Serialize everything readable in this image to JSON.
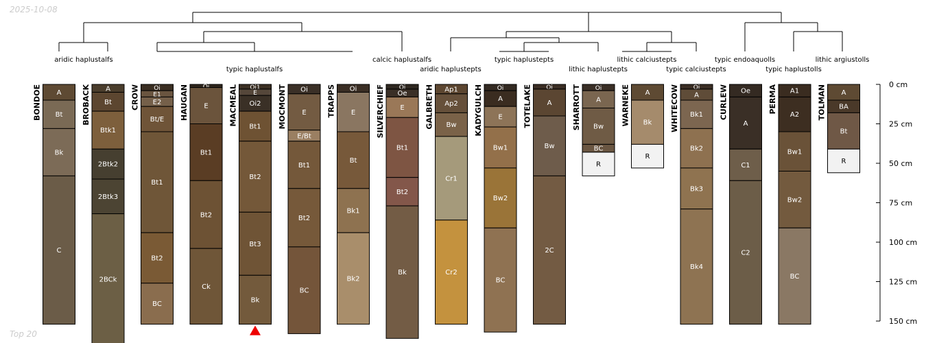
{
  "header": {
    "date": "2025-10-08"
  },
  "footer": {
    "label": "Top 20"
  },
  "depth_axis": {
    "ticks": [
      {
        "depth": 0,
        "label": "0 cm"
      },
      {
        "depth": 25,
        "label": "25 cm"
      },
      {
        "depth": 50,
        "label": "50 cm"
      },
      {
        "depth": 75,
        "label": "75 cm"
      },
      {
        "depth": 100,
        "label": "100 cm"
      },
      {
        "depth": 125,
        "label": "125 cm"
      },
      {
        "depth": 150,
        "label": "150 cm"
      }
    ]
  },
  "groups": [
    {
      "label": "aridic haplustalfs"
    },
    {
      "label": "typic haplustalfs"
    },
    {
      "label": "calcic haplustalfs"
    },
    {
      "label": "aridic haplustepts"
    },
    {
      "label": "typic haplustepts"
    },
    {
      "label": "lithic haplustepts"
    },
    {
      "label": "lithic calciustepts"
    },
    {
      "label": "typic calciustepts"
    },
    {
      "label": "typic endoaquolls"
    },
    {
      "label": "typic haplustolls"
    },
    {
      "label": "lithic argiustolls"
    }
  ],
  "profiles": [
    {
      "name": "BONDOE",
      "horizons": [
        {
          "name": "A",
          "top": 0,
          "bottom": 10,
          "color": "#5e4a33"
        },
        {
          "name": "Bt",
          "top": 10,
          "bottom": 28,
          "color": "#7a6a55"
        },
        {
          "name": "Bk",
          "top": 28,
          "bottom": 58,
          "color": "#7c6b57"
        },
        {
          "name": "C",
          "top": 58,
          "bottom": 152,
          "color": "#6b5c48"
        }
      ]
    },
    {
      "name": "BROBACK",
      "horizons": [
        {
          "name": "A",
          "top": 0,
          "bottom": 5,
          "color": "#4a3d2c"
        },
        {
          "name": "Bt",
          "top": 5,
          "bottom": 17,
          "color": "#5c4630"
        },
        {
          "name": "Btk1",
          "top": 17,
          "bottom": 41,
          "color": "#7d5f3c"
        },
        {
          "name": "2Btk2",
          "top": 41,
          "bottom": 60,
          "color": "#463f30"
        },
        {
          "name": "2Btk3",
          "top": 60,
          "bottom": 82,
          "color": "#4c4433"
        },
        {
          "name": "2BCk",
          "top": 82,
          "bottom": 165,
          "color": "#6c5f45"
        }
      ]
    },
    {
      "name": "CROW",
      "horizons": [
        {
          "name": "Oi",
          "top": 0,
          "bottom": 4,
          "color": "#3a2e22"
        },
        {
          "name": "E1",
          "top": 4,
          "bottom": 8,
          "color": "#6a5540"
        },
        {
          "name": "E2",
          "top": 8,
          "bottom": 14,
          "color": "#75604a"
        },
        {
          "name": "Bt/E",
          "top": 14,
          "bottom": 30,
          "color": "#6f5438"
        },
        {
          "name": "Bt1",
          "top": 30,
          "bottom": 94,
          "color": "#6f5638"
        },
        {
          "name": "Bt2",
          "top": 94,
          "bottom": 126,
          "color": "#7a5a35"
        },
        {
          "name": "BC",
          "top": 126,
          "bottom": 152,
          "color": "#8a6d4e"
        }
      ]
    },
    {
      "name": "HAUGAN",
      "horizons": [
        {
          "name": "Oi",
          "top": 0,
          "bottom": 2,
          "color": "#2f261c"
        },
        {
          "name": "E",
          "top": 2,
          "bottom": 25,
          "color": "#6b543c"
        },
        {
          "name": "Bt1",
          "top": 25,
          "bottom": 61,
          "color": "#5a3d24"
        },
        {
          "name": "Bt2",
          "top": 61,
          "bottom": 104,
          "color": "#6d5234"
        },
        {
          "name": "Ck",
          "top": 104,
          "bottom": 152,
          "color": "#6f5638"
        }
      ]
    },
    {
      "name": "MACMEAL",
      "horizons": [
        {
          "name": "Oi1",
          "top": 0,
          "bottom": 3,
          "color": "#3b2f23"
        },
        {
          "name": "E",
          "top": 3,
          "bottom": 7,
          "color": "#55473a"
        },
        {
          "name": "Oi2",
          "top": 7,
          "bottom": 17,
          "color": "#3a3026"
        },
        {
          "name": "Bt1",
          "top": 17,
          "bottom": 36,
          "color": "#6e5233"
        },
        {
          "name": "Bt2",
          "top": 36,
          "bottom": 81,
          "color": "#745839"
        },
        {
          "name": "Bt3",
          "top": 81,
          "bottom": 121,
          "color": "#6f5436"
        },
        {
          "name": "Bk",
          "top": 121,
          "bottom": 152,
          "color": "#735a3c"
        }
      ]
    },
    {
      "name": "MOCMONT",
      "horizons": [
        {
          "name": "Oi",
          "top": 0,
          "bottom": 6,
          "color": "#3b3027"
        },
        {
          "name": "E",
          "top": 6,
          "bottom": 29,
          "color": "#735b42"
        },
        {
          "name": "E/Bt",
          "top": 29,
          "bottom": 36,
          "color": "#9a7f62"
        },
        {
          "name": "Bt1",
          "top": 36,
          "bottom": 66,
          "color": "#74583a"
        },
        {
          "name": "Bt2",
          "top": 66,
          "bottom": 103,
          "color": "#76593a"
        },
        {
          "name": "BC",
          "top": 103,
          "bottom": 158,
          "color": "#74553a"
        }
      ]
    },
    {
      "name": "TRAPPS",
      "horizons": [
        {
          "name": "Oi",
          "top": 0,
          "bottom": 5,
          "color": "#3a2e24"
        },
        {
          "name": "E",
          "top": 5,
          "bottom": 30,
          "color": "#8a7661"
        },
        {
          "name": "Bt",
          "top": 30,
          "bottom": 66,
          "color": "#77593a"
        },
        {
          "name": "Bk1",
          "top": 66,
          "bottom": 94,
          "color": "#8e7250"
        },
        {
          "name": "Bk2",
          "top": 94,
          "bottom": 152,
          "color": "#a98e6b"
        }
      ]
    },
    {
      "name": "SILVERCHIEF",
      "horizons": [
        {
          "name": "Oi",
          "top": 0,
          "bottom": 3,
          "color": "#2e2720"
        },
        {
          "name": "Oe",
          "top": 3,
          "bottom": 8,
          "color": "#3a2f26"
        },
        {
          "name": "E",
          "top": 8,
          "bottom": 21,
          "color": "#9a7858"
        },
        {
          "name": "Bt1",
          "top": 21,
          "bottom": 59,
          "color": "#7e5543"
        },
        {
          "name": "Bt2",
          "top": 59,
          "bottom": 77,
          "color": "#83574a"
        },
        {
          "name": "Bk",
          "top": 77,
          "bottom": 161,
          "color": "#735c45"
        }
      ]
    },
    {
      "name": "GALBRETH",
      "horizons": [
        {
          "name": "Ap1",
          "top": 0,
          "bottom": 6,
          "color": "#5c4630"
        },
        {
          "name": "Ap2",
          "top": 6,
          "bottom": 18,
          "color": "#66503a"
        },
        {
          "name": "Bw",
          "top": 18,
          "bottom": 33,
          "color": "#7a6248"
        },
        {
          "name": "Cr1",
          "top": 33,
          "bottom": 86,
          "color": "#a59a7b"
        },
        {
          "name": "Cr2",
          "top": 86,
          "bottom": 152,
          "color": "#c4923e"
        }
      ]
    },
    {
      "name": "KADYGULCH",
      "horizons": [
        {
          "name": "Oi",
          "top": 0,
          "bottom": 4,
          "color": "#332a22"
        },
        {
          "name": "A",
          "top": 4,
          "bottom": 14,
          "color": "#3a2c20"
        },
        {
          "name": "E",
          "top": 14,
          "bottom": 27,
          "color": "#8d7458"
        },
        {
          "name": "Bw1",
          "top": 27,
          "bottom": 53,
          "color": "#93704a"
        },
        {
          "name": "Bw2",
          "top": 53,
          "bottom": 91,
          "color": "#9a7438"
        },
        {
          "name": "BC",
          "top": 91,
          "bottom": 157,
          "color": "#8f7252"
        }
      ]
    },
    {
      "name": "TOTELAKE",
      "horizons": [
        {
          "name": "Oi",
          "top": 0,
          "bottom": 3,
          "color": "#3b2e24"
        },
        {
          "name": "A",
          "top": 3,
          "bottom": 20,
          "color": "#5b4632"
        },
        {
          "name": "Bw",
          "top": 20,
          "bottom": 58,
          "color": "#6e5c4b"
        },
        {
          "name": "2C",
          "top": 58,
          "bottom": 152,
          "color": "#735b43"
        }
      ]
    },
    {
      "name": "SHARROTT",
      "horizons": [
        {
          "name": "Oi",
          "top": 0,
          "bottom": 4,
          "color": "#3a2f26"
        },
        {
          "name": "A",
          "top": 4,
          "bottom": 15,
          "color": "#7a6650"
        },
        {
          "name": "Bw",
          "top": 15,
          "bottom": 38,
          "color": "#6f5b45"
        },
        {
          "name": "BC",
          "top": 38,
          "bottom": 43,
          "color": "#6a5642"
        },
        {
          "name": "R",
          "top": 43,
          "bottom": 58,
          "color": "#f2f2f2"
        }
      ]
    },
    {
      "name": "WARNEKE",
      "horizons": [
        {
          "name": "A",
          "top": 0,
          "bottom": 10,
          "color": "#5e4a33"
        },
        {
          "name": "Bk",
          "top": 10,
          "bottom": 38,
          "color": "#a58b6c"
        },
        {
          "name": "R",
          "top": 38,
          "bottom": 53,
          "color": "#f2f2f2"
        }
      ]
    },
    {
      "name": "WHITECOW",
      "horizons": [
        {
          "name": "Oi",
          "top": 0,
          "bottom": 3,
          "color": "#3a2e24"
        },
        {
          "name": "A",
          "top": 3,
          "bottom": 10,
          "color": "#5f4c38"
        },
        {
          "name": "Bk1",
          "top": 10,
          "bottom": 28,
          "color": "#7c6650"
        },
        {
          "name": "Bk2",
          "top": 28,
          "bottom": 53,
          "color": "#8e7150"
        },
        {
          "name": "Bk3",
          "top": 53,
          "bottom": 79,
          "color": "#8f7350"
        },
        {
          "name": "Bk4",
          "top": 79,
          "bottom": 152,
          "color": "#8e7352"
        }
      ]
    },
    {
      "name": "CURLEW",
      "horizons": [
        {
          "name": "Oe",
          "top": 0,
          "bottom": 8,
          "color": "#342a22"
        },
        {
          "name": "A",
          "top": 8,
          "bottom": 41,
          "color": "#3a2f26"
        },
        {
          "name": "C1",
          "top": 41,
          "bottom": 61,
          "color": "#6e5e4a"
        },
        {
          "name": "C2",
          "top": 61,
          "bottom": 152,
          "color": "#6c5d48"
        }
      ]
    },
    {
      "name": "PERMA",
      "horizons": [
        {
          "name": "A1",
          "top": 0,
          "bottom": 8,
          "color": "#3a2c20"
        },
        {
          "name": "A2",
          "top": 8,
          "bottom": 30,
          "color": "#3d2e21"
        },
        {
          "name": "Bw1",
          "top": 30,
          "bottom": 55,
          "color": "#6a5238"
        },
        {
          "name": "Bw2",
          "top": 55,
          "bottom": 91,
          "color": "#735a3e"
        },
        {
          "name": "BC",
          "top": 91,
          "bottom": 152,
          "color": "#8a7864"
        }
      ]
    },
    {
      "name": "TOLMAN",
      "horizons": [
        {
          "name": "A",
          "top": 0,
          "bottom": 10,
          "color": "#5e4a33"
        },
        {
          "name": "BA",
          "top": 10,
          "bottom": 18,
          "color": "#4a3929"
        },
        {
          "name": "Bt",
          "top": 18,
          "bottom": 41,
          "color": "#6f5846"
        },
        {
          "name": "R",
          "top": 41,
          "bottom": 56,
          "color": "#f2f2f2"
        }
      ]
    }
  ],
  "marker": {
    "profile_index": 4,
    "symbol": "triangle",
    "color": "#ee0000"
  }
}
